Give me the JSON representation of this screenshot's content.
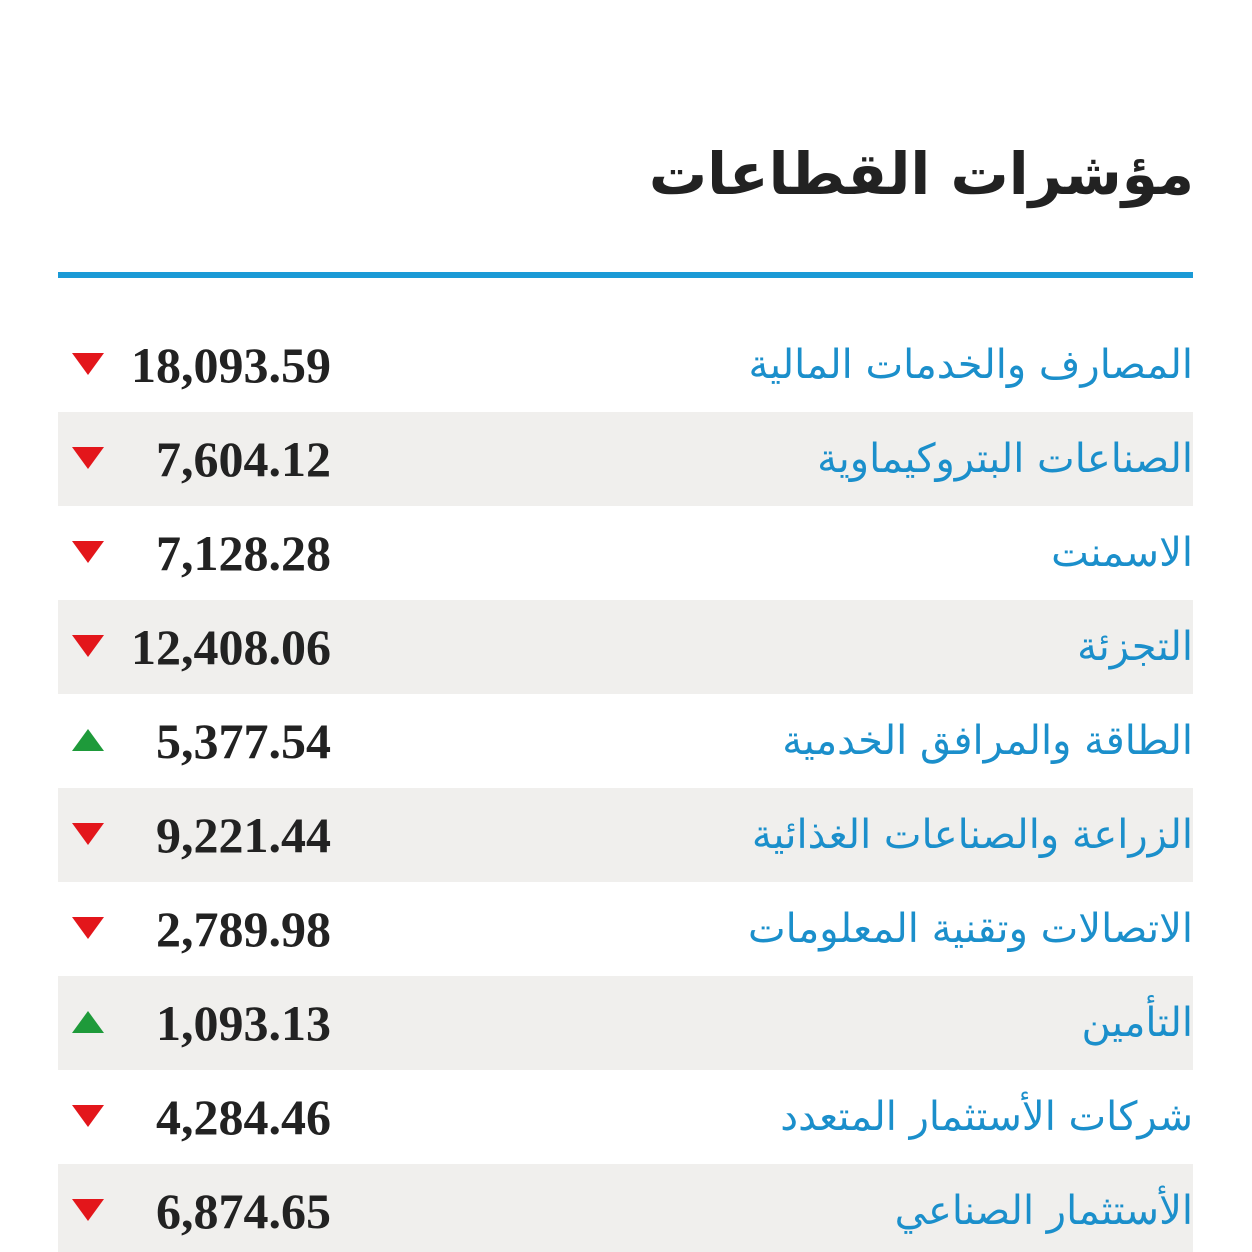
{
  "header": {
    "title": "مؤشرات القطاعات"
  },
  "table": {
    "rows": [
      {
        "name": "المصارف والخدمات المالية",
        "value": "18,093.59",
        "trend": "down"
      },
      {
        "name": "الصناعات البتروكيماوية",
        "value": "7,604.12",
        "trend": "down"
      },
      {
        "name": "الاسمنت",
        "value": "7,128.28",
        "trend": "down"
      },
      {
        "name": "التجزئة",
        "value": "12,408.06",
        "trend": "down"
      },
      {
        "name": "الطاقة والمرافق الخدمية",
        "value": "5,377.54",
        "trend": "up"
      },
      {
        "name": "الزراعة والصناعات الغذائية",
        "value": "9,221.44",
        "trend": "down"
      },
      {
        "name": "الاتصالات وتقنية المعلومات",
        "value": "2,789.98",
        "trend": "down"
      },
      {
        "name": "التأمين",
        "value": "1,093.13",
        "trend": "up"
      },
      {
        "name": "شركات الأستثمار المتعدد",
        "value": "4,284.46",
        "trend": "down"
      },
      {
        "name": "الأستثمار الصناعي",
        "value": "6,874.65",
        "trend": "down"
      }
    ]
  }
}
